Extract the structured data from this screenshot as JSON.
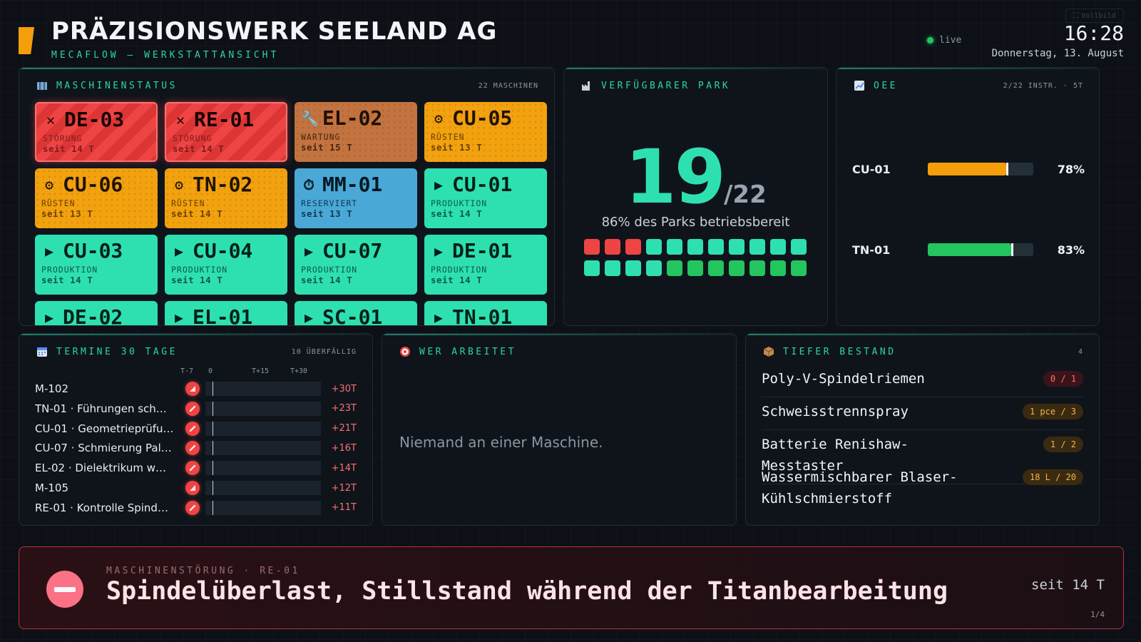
{
  "header": {
    "title": "PRÄZISIONSWERK SEELAND AG",
    "subtitle": "MECAFLOW — WERKSTATTANSICHT",
    "live_label": "live",
    "fullscreen_label": "Vollbild",
    "time": "16:28",
    "date": "Donnerstag, 13. August"
  },
  "machines": {
    "title": "MASCHINENSTATUS",
    "count": "22 MASCHINEN",
    "tiles": [
      {
        "name": "DE-03",
        "status": "STÖRUNG",
        "since": "seit 14 T",
        "kind": "err",
        "icon": "x-icon"
      },
      {
        "name": "RE-01",
        "status": "STÖRUNG",
        "since": "seit 14 T",
        "kind": "err",
        "icon": "x-icon"
      },
      {
        "name": "EL-02",
        "status": "WARTUNG",
        "since": "seit 15 T",
        "kind": "maint",
        "icon": "wrench-icon"
      },
      {
        "name": "CU-05",
        "status": "RÜSTEN",
        "since": "seit 13 T",
        "kind": "setup",
        "icon": "gear-icon"
      },
      {
        "name": "CU-06",
        "status": "RÜSTEN",
        "since": "seit 13 T",
        "kind": "setup",
        "icon": "gear-icon"
      },
      {
        "name": "TN-02",
        "status": "RÜSTEN",
        "since": "seit 14 T",
        "kind": "setup",
        "icon": "gear-icon"
      },
      {
        "name": "MM-01",
        "status": "RESERVIERT",
        "since": "seit 13 T",
        "kind": "res",
        "icon": "stopwatch-icon"
      },
      {
        "name": "CU-01",
        "status": "PRODUKTION",
        "since": "seit 14 T",
        "kind": "prod",
        "icon": "play-icon"
      },
      {
        "name": "CU-03",
        "status": "PRODUKTION",
        "since": "seit 14 T",
        "kind": "prod",
        "icon": "play-icon"
      },
      {
        "name": "CU-04",
        "status": "PRODUKTION",
        "since": "seit 14 T",
        "kind": "prod",
        "icon": "play-icon"
      },
      {
        "name": "CU-07",
        "status": "PRODUKTION",
        "since": "seit 14 T",
        "kind": "prod",
        "icon": "play-icon"
      },
      {
        "name": "DE-01",
        "status": "PRODUKTION",
        "since": "seit 14 T",
        "kind": "prod",
        "icon": "play-icon"
      },
      {
        "name": "DE-02",
        "status": "",
        "since": "",
        "kind": "prod",
        "icon": "play-icon"
      },
      {
        "name": "EL-01",
        "status": "",
        "since": "",
        "kind": "prod",
        "icon": "play-icon"
      },
      {
        "name": "SC-01",
        "status": "",
        "since": "",
        "kind": "prod",
        "icon": "play-icon"
      },
      {
        "name": "TN-01",
        "status": "",
        "since": "",
        "kind": "prod",
        "icon": "play-icon"
      }
    ]
  },
  "park": {
    "title": "VERFÜGBARER PARK",
    "available": "19",
    "total": "/22",
    "subtitle": "86% des Parks betriebsbereit",
    "cells": [
      "err",
      "err",
      "err",
      "teal",
      "teal",
      "teal",
      "teal",
      "teal",
      "teal",
      "teal",
      "teal",
      "teal",
      "teal",
      "teal",
      "teal",
      "green",
      "green",
      "green",
      "green",
      "green",
      "green",
      "green"
    ],
    "colors": {
      "err": "#ef4444",
      "teal": "#2ee0b0",
      "green": "#22c55e"
    }
  },
  "oee": {
    "title": "OEE",
    "meta": "2/22 INSTR. · 5T",
    "rows": [
      {
        "name": "CU-01",
        "value": "78%",
        "fill": 0.78,
        "color": "#f59e0b"
      },
      {
        "name": "TN-01",
        "value": "83%",
        "fill": 0.83,
        "color": "#22c55e"
      }
    ]
  },
  "termine": {
    "title": "TERMINE 30 TAGE",
    "meta": "10 ÜBERFÄLLIG",
    "axis": [
      "T-7",
      "0",
      "T+15",
      "T+30"
    ],
    "rows": [
      {
        "name": "M-102",
        "due": "+30T",
        "icon": "ruler-icon"
      },
      {
        "name": "TN-01 · Führungen sch…",
        "due": "+23T",
        "icon": "wrench-icon"
      },
      {
        "name": "CU-01 · Geometrieprüfu…",
        "due": "+21T",
        "icon": "wrench-icon"
      },
      {
        "name": "CU-07 · Schmierung Pal…",
        "due": "+16T",
        "icon": "wrench-icon"
      },
      {
        "name": "EL-02 · Dielektrikum w…",
        "due": "+14T",
        "icon": "wrench-icon"
      },
      {
        "name": "M-105",
        "due": "+12T",
        "icon": "ruler-icon"
      },
      {
        "name": "RE-01 · Kontrolle Spind…",
        "due": "+11T",
        "icon": "wrench-icon"
      }
    ]
  },
  "workers": {
    "title": "WER ARBEITET",
    "empty": "Niemand an einer Maschine."
  },
  "stock": {
    "title": "TIEFER BESTAND",
    "count": "4",
    "items": [
      {
        "name": "Poly-V-Spindelriemen",
        "qty": "0 / 1",
        "level": "red"
      },
      {
        "name": "Schweisstrennspray",
        "qty": "1 pce / 3",
        "level": "amber"
      },
      {
        "name": "Batterie Renishaw-Messtaster",
        "qty": "1 / 2",
        "level": "amber"
      },
      {
        "name": "Wassermischbarer Blaser-Kühlschmierstoff",
        "qty": "18 L / 20",
        "level": "amber"
      }
    ]
  },
  "alarm": {
    "kicker": "MASCHINENSTÖRUNG · RE-01",
    "message": "Spindelüberlast, Stillstand während der Titanbearbeitung",
    "since": "seit 14 T",
    "page": "1/4"
  }
}
